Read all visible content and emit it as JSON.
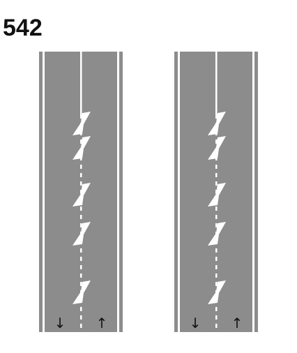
{
  "sign_number": "542",
  "colors": {
    "road": "#8c8c8c",
    "marking": "#ffffff",
    "text": "#111111",
    "arrow": "#111111",
    "background": "#ffffff"
  },
  "roads": [
    {
      "name": "road-variant-left",
      "lane_arrows": [
        {
          "direction": "down",
          "icon": "arrow-down-icon",
          "glyph": "↓"
        },
        {
          "direction": "up",
          "icon": "arrow-up-icon",
          "glyph": "↑"
        }
      ],
      "chevron_count": 5
    },
    {
      "name": "road-variant-right",
      "lane_arrows": [
        {
          "direction": "down",
          "icon": "arrow-down-icon",
          "glyph": "↓"
        },
        {
          "direction": "up",
          "icon": "arrow-up-icon",
          "glyph": "↑"
        }
      ],
      "chevron_count": 5
    }
  ]
}
